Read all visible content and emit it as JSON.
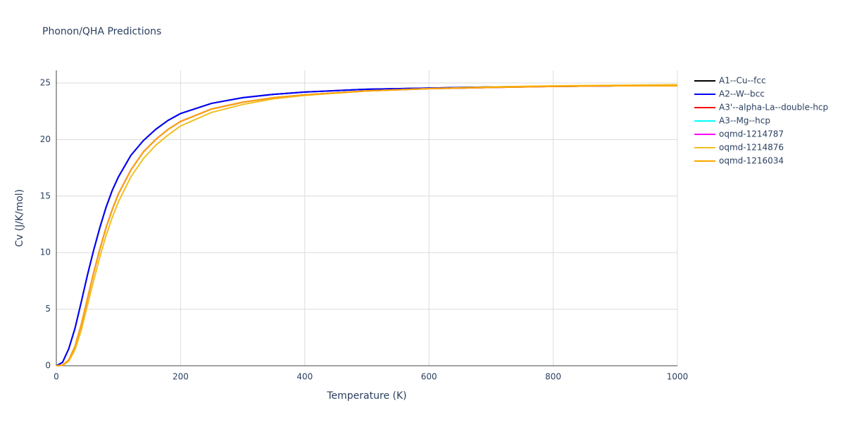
{
  "chart_data": {
    "type": "line",
    "title": "Phonon/QHA Predictions",
    "x_label": "Temperature (K)",
    "y_label": "Cv (J/K/mol)",
    "x": [
      0,
      10,
      20,
      30,
      40,
      50,
      60,
      70,
      80,
      90,
      100,
      120,
      140,
      160,
      180,
      200,
      250,
      300,
      350,
      400,
      500,
      600,
      700,
      800,
      900,
      1000
    ],
    "series": [
      {
        "name": "A1--Cu--fcc",
        "color": "#000000",
        "values": [
          0,
          0.3,
          1.5,
          3.3,
          5.6,
          8.0,
          10.2,
          12.2,
          14.0,
          15.5,
          16.7,
          18.6,
          19.9,
          20.9,
          21.7,
          22.3,
          23.2,
          23.7,
          24.0,
          24.2,
          24.45,
          24.55,
          24.65,
          24.7,
          24.75,
          24.75
        ]
      },
      {
        "name": "A2--W--bcc",
        "color": "#0000ff",
        "values": [
          0,
          0.3,
          1.5,
          3.3,
          5.6,
          8.0,
          10.2,
          12.2,
          14.0,
          15.5,
          16.7,
          18.6,
          19.9,
          20.9,
          21.7,
          22.3,
          23.2,
          23.7,
          24.0,
          24.2,
          24.45,
          24.55,
          24.65,
          24.7,
          24.75,
          24.75
        ]
      },
      {
        "name": "A3'--alpha-La--double-hcp",
        "color": "#ff0000",
        "values": [
          0,
          0.05,
          0.5,
          1.7,
          3.6,
          5.9,
          8.2,
          10.3,
          12.2,
          13.8,
          15.2,
          17.3,
          18.9,
          20.0,
          20.9,
          21.6,
          22.7,
          23.3,
          23.7,
          23.95,
          24.3,
          24.5,
          24.6,
          24.7,
          24.75,
          24.75
        ]
      },
      {
        "name": "A3--Mg--hcp",
        "color": "#00ffff",
        "values": [
          0,
          0.05,
          0.5,
          1.7,
          3.6,
          5.9,
          8.2,
          10.3,
          12.2,
          13.8,
          15.2,
          17.3,
          18.9,
          20.0,
          20.9,
          21.6,
          22.7,
          23.3,
          23.7,
          23.95,
          24.3,
          24.5,
          24.6,
          24.7,
          24.75,
          24.75
        ]
      },
      {
        "name": "oqmd-1214787",
        "color": "#ff00ff",
        "values": [
          0,
          0.05,
          0.5,
          1.7,
          3.6,
          5.9,
          8.2,
          10.3,
          12.2,
          13.8,
          15.2,
          17.3,
          18.9,
          20.0,
          20.9,
          21.6,
          22.7,
          23.3,
          23.7,
          23.95,
          24.3,
          24.5,
          24.6,
          24.7,
          24.75,
          24.75
        ]
      },
      {
        "name": "oqmd-1214876",
        "color": "#f0c020",
        "values": [
          0,
          0.03,
          0.4,
          1.4,
          3.1,
          5.3,
          7.5,
          9.6,
          11.5,
          13.1,
          14.5,
          16.7,
          18.3,
          19.5,
          20.4,
          21.2,
          22.4,
          23.1,
          23.6,
          23.9,
          24.3,
          24.5,
          24.65,
          24.75,
          24.8,
          24.85
        ]
      },
      {
        "name": "oqmd-1216034",
        "color": "#ffa500",
        "values": [
          0,
          0.05,
          0.5,
          1.7,
          3.6,
          5.9,
          8.2,
          10.3,
          12.2,
          13.8,
          15.2,
          17.3,
          18.9,
          20.0,
          20.9,
          21.6,
          22.7,
          23.3,
          23.7,
          23.95,
          24.3,
          24.5,
          24.6,
          24.7,
          24.75,
          24.75
        ]
      }
    ],
    "xlim": [
      0,
      1000
    ],
    "xticks": [
      0,
      200,
      400,
      600,
      800,
      1000
    ],
    "ylim": [
      0,
      25
    ],
    "yticks": [
      0,
      5,
      10,
      15,
      20,
      25
    ],
    "grid": true,
    "legend": "right"
  }
}
